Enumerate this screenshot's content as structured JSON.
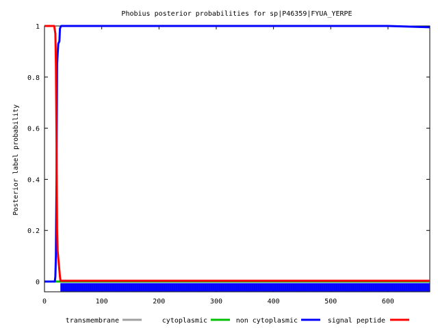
{
  "chart_data": {
    "type": "line",
    "title": "Phobius posterior probabilities for sp|P46359|FYUA_YERPE",
    "xlabel": "",
    "ylabel": "Posterior label probability",
    "xlim": [
      0,
      673
    ],
    "ylim": [
      -0.04,
      1.0
    ],
    "x_ticks": [
      0,
      100,
      200,
      300,
      400,
      500,
      600
    ],
    "y_ticks": [
      0,
      0.2,
      0.4,
      0.6,
      0.8,
      1
    ],
    "y_tick_labels": [
      "0",
      "0.2",
      "0.4",
      "0.6",
      "0.8",
      "1"
    ],
    "grid": false,
    "legend_position": "bottom",
    "series": [
      {
        "name": "transmembrane",
        "color": "#a0a0a0",
        "points": [
          [
            0,
            0
          ],
          [
            673,
            0
          ]
        ]
      },
      {
        "name": "cytoplasmic",
        "color": "#00c000",
        "points": [
          [
            0,
            0
          ],
          [
            673,
            0
          ]
        ]
      },
      {
        "name": "non cytoplasmic",
        "color": "#0000ff",
        "points": [
          [
            0,
            0
          ],
          [
            18,
            0
          ],
          [
            19,
            0.02
          ],
          [
            20,
            0.1
          ],
          [
            21,
            0.4
          ],
          [
            22,
            0.85
          ],
          [
            24,
            0.93
          ],
          [
            26,
            0.94
          ],
          [
            27,
            0.99
          ],
          [
            29,
            1.0
          ],
          [
            600,
            1.0
          ],
          [
            673,
            0.995
          ]
        ]
      },
      {
        "name": "signal peptide",
        "color": "#ff0000",
        "points": [
          [
            0,
            1.0
          ],
          [
            17,
            1.0
          ],
          [
            19,
            0.97
          ],
          [
            20,
            0.85
          ],
          [
            21,
            0.55
          ],
          [
            22,
            0.2
          ],
          [
            23,
            0.12
          ],
          [
            25,
            0.07
          ],
          [
            27,
            0.02
          ],
          [
            28,
            0.003
          ],
          [
            673,
            0.003
          ]
        ]
      }
    ],
    "region_track": {
      "color": "#0000ff",
      "y": -0.025,
      "start": 28,
      "end": 673
    }
  }
}
